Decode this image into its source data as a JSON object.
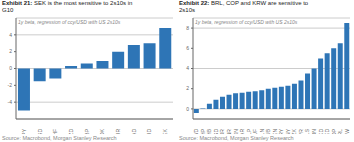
{
  "chart_data": [
    {
      "type": "bar",
      "title": "Exhibit 21: SEK is the most sensitive to 2s10s in\nG10",
      "subtitle": "1y beta, regression of ccy/USD with US 2s10s",
      "annotations": [
        "Source: Macrobond, Morgan Stanley Research"
      ],
      "categories": [
        "JPY",
        "USD",
        "CHF",
        "NZD",
        "GBP",
        "NOK",
        "EUR",
        "CAD",
        "AUD",
        "SEK"
      ],
      "values": [
        -5.0,
        -1.5,
        -1.2,
        0.3,
        0.6,
        0.9,
        2.0,
        2.8,
        3.0,
        4.8
      ],
      "color": "#2E75B6",
      "ylim": [
        -6,
        6
      ],
      "yticks": [
        -4,
        -2,
        0,
        2,
        4
      ],
      "grid": true
    },
    {
      "type": "bar",
      "title": "Exhibit 22: BRL, COP and KRW are sensitive to\n2s10s",
      "subtitle": "1y beta, regression of ccy/USD with US 2s10s",
      "annotations": [
        "Source: Macrobond, Morgan Stanley Research"
      ],
      "categories": [
        "TWD",
        "PHP",
        "THB",
        "SGD",
        "IDR",
        "INR",
        "MXN",
        "ZAR",
        "CLP",
        "HUF",
        "PLN",
        "RUB",
        "PEN",
        "TRY",
        "CNY",
        "CZK",
        "MYR",
        "ILS",
        "RON",
        "HKD",
        "AED",
        "COP",
        "BRL",
        "KRW"
      ],
      "values": [
        -0.4,
        0.05,
        0.5,
        0.9,
        1.2,
        1.4,
        1.55,
        1.6,
        1.7,
        1.75,
        1.85,
        2.0,
        2.1,
        2.2,
        2.3,
        2.5,
        2.8,
        3.5,
        4.0,
        5.0,
        5.5,
        6.0,
        6.5,
        8.5
      ],
      "color": "#2E75B6",
      "ylim": [
        -1,
        9
      ],
      "yticks": [
        0,
        2,
        4,
        6,
        8
      ],
      "grid": true
    }
  ]
}
